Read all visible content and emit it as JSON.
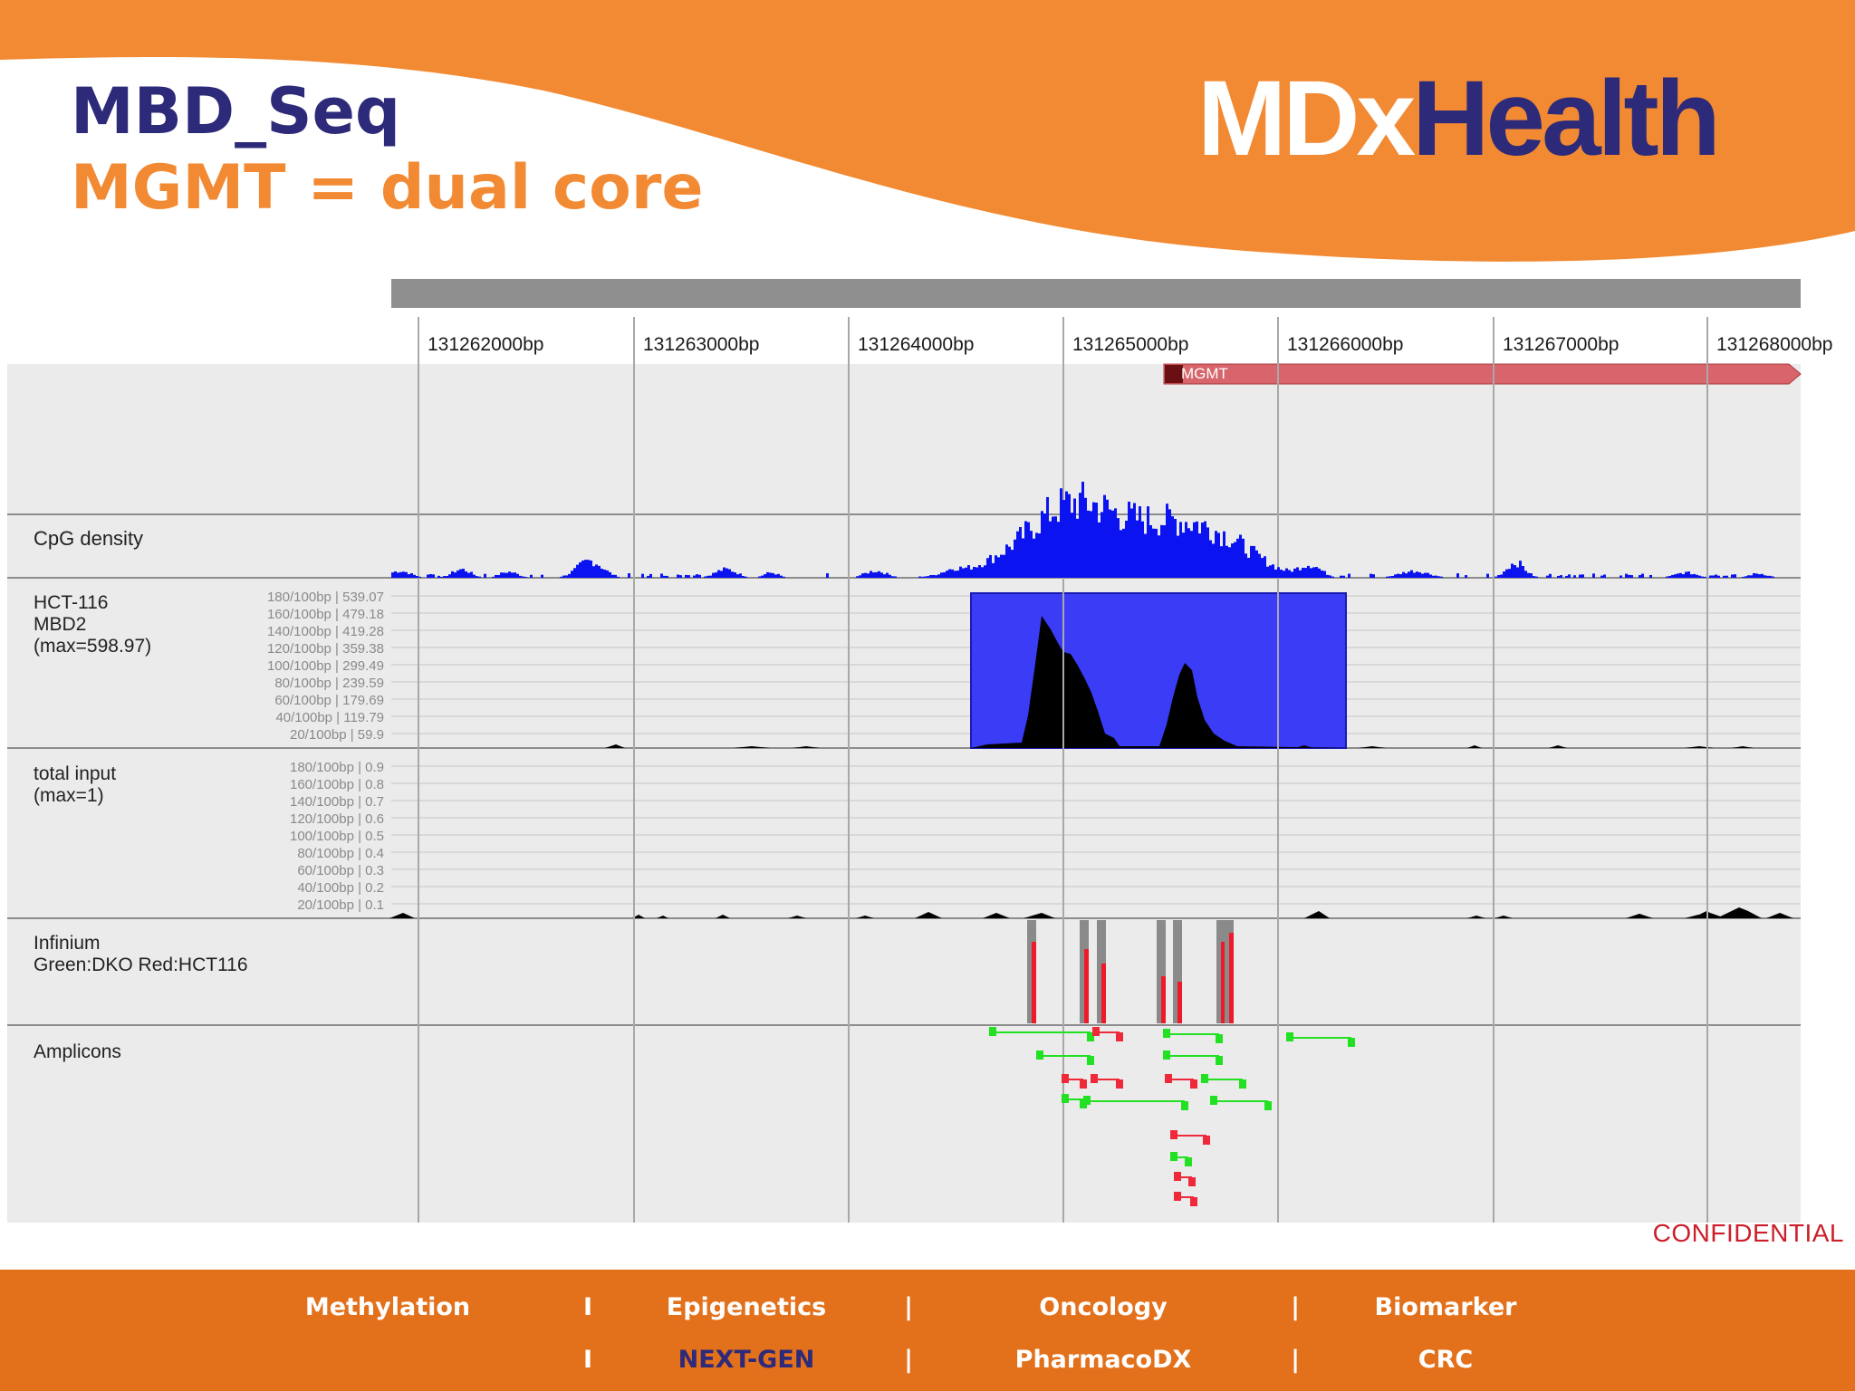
{
  "slide": {
    "title": "MBD_Seq",
    "subtitle": "MGMT = dual core",
    "logo_mdx": "MDx",
    "logo_health": "Health",
    "confidential": "CONFIDENTIAL"
  },
  "colors": {
    "orange": "#f28a33",
    "navy": "#2e2a7a",
    "footer_orange": "#e3701a",
    "cpg_blue": "#0b14f0",
    "highlight_blue": "#3a3cf6",
    "gene_red": "#d7656b",
    "amplicon_green": "#22e022",
    "amplicon_red": "#ee2a3a"
  },
  "browser": {
    "coords": [
      "131262000bp",
      "131263000bp",
      "131264000bp",
      "131265000bp",
      "131266000bp",
      "131267000bp",
      "131268000bp"
    ],
    "gene_label": "MGMT",
    "tracks": {
      "cpg": "CpG density",
      "mbd": [
        "HCT-116",
        "MBD2",
        "(max=598.97)"
      ],
      "mbd_scale": [
        "180/100bp | 539.07",
        "160/100bp | 479.18",
        "140/100bp | 419.28",
        "120/100bp | 359.38",
        "100/100bp | 299.49",
        "80/100bp | 239.59",
        "60/100bp | 179.69",
        "40/100bp | 119.79",
        "20/100bp | 59.9"
      ],
      "input": [
        "total input",
        "(max=1)"
      ],
      "input_scale": [
        "180/100bp | 0.9",
        "160/100bp | 0.8",
        "140/100bp | 0.7",
        "120/100bp | 0.6",
        "100/100bp | 0.5",
        "80/100bp | 0.4",
        "60/100bp | 0.3",
        "40/100bp | 0.2",
        "20/100bp | 0.1"
      ],
      "infinium": [
        "Infinium",
        "Green:DKO  Red:HCT116"
      ],
      "amplicons": "Amplicons"
    }
  },
  "footer": {
    "row1": [
      "Methylation",
      "Epigenetics",
      "Oncology",
      "Biomarker"
    ],
    "row2": [
      "",
      "NEXT-GEN",
      "PharmacoDX",
      "CRC"
    ],
    "separators": [
      "I",
      "|",
      "|"
    ]
  }
}
